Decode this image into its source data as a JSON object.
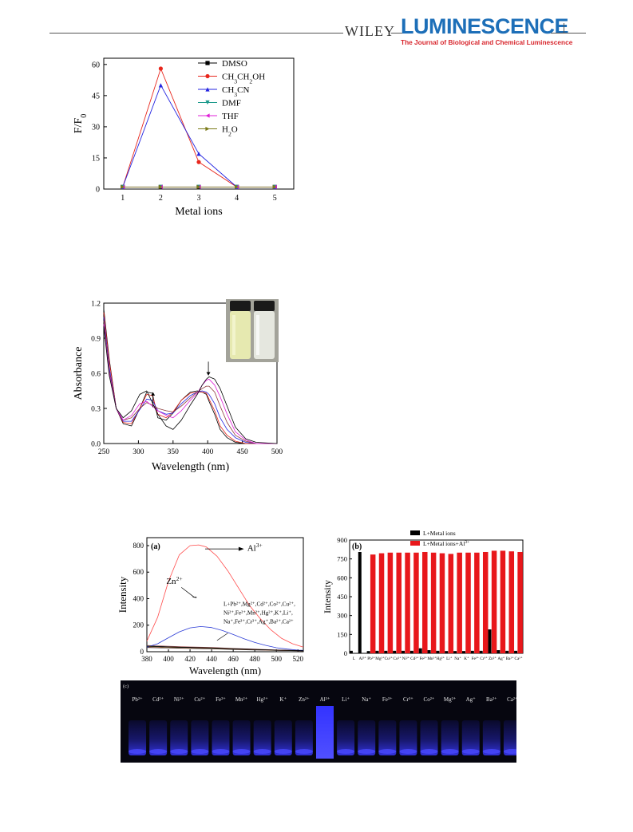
{
  "header": {
    "publisher": "WILEY",
    "journal": "LUMINESCENCE",
    "journal_subtitle": "The Journal of Biological and Chemical Luminescence"
  },
  "chart_data": [
    {
      "type": "line",
      "xlabel": "Metal ions",
      "ylabel": "F/F0",
      "xlim": [
        0.5,
        5.5
      ],
      "ylim": [
        0,
        63
      ],
      "xticks": [
        1,
        2,
        3,
        4,
        5
      ],
      "yticks": [
        0,
        15,
        30,
        45,
        60
      ],
      "legend_position": "top-right",
      "series": [
        {
          "name": "DMSO",
          "color": "#000000",
          "marker": "square",
          "x": [
            1,
            2,
            3,
            4,
            5
          ],
          "y": [
            1,
            1,
            1,
            1,
            1
          ]
        },
        {
          "name": "CH3CH2OH",
          "color": "#e8271d",
          "marker": "circle",
          "x": [
            1,
            2,
            3,
            4,
            5
          ],
          "y": [
            1,
            58,
            13,
            1,
            1
          ]
        },
        {
          "name": "CH3CN",
          "color": "#2424e0",
          "marker": "triangle-up",
          "x": [
            1,
            2,
            3,
            4,
            5
          ],
          "y": [
            1,
            50,
            17,
            1,
            1
          ]
        },
        {
          "name": "DMF",
          "color": "#1e9a8c",
          "marker": "triangle-down",
          "x": [
            1,
            2,
            3,
            4,
            5
          ],
          "y": [
            1,
            1,
            1,
            1,
            1
          ]
        },
        {
          "name": "THF",
          "color": "#e020d8",
          "marker": "triangle-left",
          "x": [
            1,
            2,
            3,
            4,
            5
          ],
          "y": [
            1,
            1,
            1,
            1,
            1
          ]
        },
        {
          "name": "H2O",
          "color": "#7a7a18",
          "marker": "triangle-right",
          "x": [
            1,
            2,
            3,
            4,
            5
          ],
          "y": [
            1,
            1,
            1,
            1,
            1
          ]
        }
      ]
    },
    {
      "type": "line",
      "xlabel": "Wavelength (nm)",
      "ylabel": "Absorbance",
      "xlim": [
        250,
        500
      ],
      "ylim": [
        0,
        1.2
      ],
      "xticks": [
        250,
        300,
        350,
        400,
        450,
        500
      ],
      "yticks": [
        0.0,
        0.3,
        0.6,
        0.9,
        1.2
      ],
      "ytick_labels": [
        "0.0",
        "0.3",
        "0.6",
        "0.9",
        "1.2"
      ],
      "arrows": [
        {
          "x": 321,
          "direction": "up"
        },
        {
          "x": 401,
          "direction": "down"
        }
      ],
      "inset_photo": "two vials, yellow and colorless",
      "series": [
        {
          "color": "#000000",
          "x": [
            250,
            258,
            268,
            278,
            290,
            302,
            312,
            320,
            328,
            340,
            350,
            362,
            375,
            385,
            392,
            398,
            402,
            410,
            418,
            428,
            440,
            455,
            470,
            500
          ],
          "y": [
            1.15,
            0.72,
            0.3,
            0.17,
            0.15,
            0.3,
            0.44,
            0.43,
            0.22,
            0.2,
            0.26,
            0.37,
            0.44,
            0.45,
            0.44,
            0.42,
            0.36,
            0.25,
            0.12,
            0.05,
            0.01,
            0.0,
            0.0,
            0.0
          ]
        },
        {
          "color": "#e8271d",
          "x": [
            250,
            258,
            268,
            278,
            290,
            302,
            312,
            320,
            328,
            340,
            350,
            362,
            375,
            385,
            392,
            398,
            402,
            410,
            418,
            428,
            440,
            455,
            470,
            500
          ],
          "y": [
            1.12,
            0.7,
            0.3,
            0.18,
            0.17,
            0.3,
            0.42,
            0.41,
            0.25,
            0.22,
            0.27,
            0.37,
            0.43,
            0.44,
            0.44,
            0.43,
            0.38,
            0.28,
            0.15,
            0.07,
            0.02,
            0.0,
            0.0,
            0.0
          ]
        },
        {
          "color": "#2424e0",
          "x": [
            250,
            258,
            268,
            278,
            290,
            302,
            312,
            320,
            328,
            340,
            350,
            362,
            375,
            385,
            392,
            398,
            402,
            410,
            418,
            428,
            440,
            455,
            470,
            500
          ],
          "y": [
            1.08,
            0.65,
            0.3,
            0.19,
            0.19,
            0.29,
            0.38,
            0.37,
            0.28,
            0.25,
            0.26,
            0.34,
            0.41,
            0.44,
            0.45,
            0.44,
            0.42,
            0.34,
            0.22,
            0.12,
            0.05,
            0.01,
            0.0,
            0.0
          ]
        },
        {
          "color": "#8b3a3a",
          "x": [
            250,
            258,
            268,
            278,
            290,
            302,
            312,
            320,
            328,
            340,
            350,
            362,
            375,
            385,
            392,
            398,
            402,
            410,
            418,
            428,
            440,
            455,
            470,
            500
          ],
          "y": [
            1.05,
            0.62,
            0.3,
            0.2,
            0.22,
            0.3,
            0.35,
            0.33,
            0.3,
            0.28,
            0.27,
            0.32,
            0.39,
            0.44,
            0.47,
            0.49,
            0.49,
            0.44,
            0.32,
            0.18,
            0.07,
            0.02,
            0.0,
            0.0
          ]
        },
        {
          "color": "#e020d8",
          "x": [
            250,
            258,
            268,
            278,
            290,
            302,
            312,
            320,
            328,
            340,
            350,
            362,
            375,
            385,
            392,
            398,
            402,
            410,
            418,
            428,
            440,
            455,
            470,
            500
          ],
          "y": [
            1.02,
            0.6,
            0.3,
            0.2,
            0.24,
            0.34,
            0.36,
            0.32,
            0.28,
            0.24,
            0.22,
            0.28,
            0.37,
            0.43,
            0.5,
            0.54,
            0.55,
            0.5,
            0.4,
            0.25,
            0.1,
            0.03,
            0.0,
            0.0
          ]
        },
        {
          "color": "#000000",
          "x": [
            250,
            258,
            268,
            278,
            290,
            302,
            312,
            320,
            328,
            340,
            350,
            362,
            375,
            385,
            392,
            398,
            402,
            410,
            418,
            428,
            440,
            455,
            470,
            500
          ],
          "y": [
            1.0,
            0.58,
            0.3,
            0.22,
            0.28,
            0.42,
            0.45,
            0.35,
            0.25,
            0.15,
            0.12,
            0.2,
            0.33,
            0.42,
            0.5,
            0.55,
            0.57,
            0.55,
            0.47,
            0.32,
            0.14,
            0.04,
            0.01,
            0.0
          ]
        }
      ]
    },
    {
      "type": "line",
      "panel_label": "(a)",
      "xlabel": "Wavelength (nm)",
      "ylabel": "Intensity",
      "xlim": [
        380,
        525
      ],
      "ylim": [
        0,
        860
      ],
      "xticks": [
        380,
        400,
        420,
        440,
        460,
        480,
        500,
        520
      ],
      "yticks": [
        0,
        200,
        400,
        600,
        800
      ],
      "annotations": [
        {
          "text": "Al3+",
          "target": "red peak"
        },
        {
          "text": "Zn2+",
          "target": "blue peak"
        },
        {
          "text": "L+Pb2+,Mg2+,Cd2+,Co2+,Cu2+, Ni2+,Fe2+,Mn2+,Hg2+,K+,Li+, Na+,Fe3+,Cr3+,Ag+,Ba2+,Ca2+",
          "target": "baseline curves"
        }
      ],
      "series": [
        {
          "name": "Al3+",
          "color": "#ff4a4a",
          "x": [
            380,
            390,
            400,
            410,
            420,
            428,
            435,
            445,
            455,
            465,
            475,
            485,
            495,
            505,
            515,
            525
          ],
          "y": [
            80,
            260,
            530,
            730,
            800,
            805,
            790,
            720,
            610,
            480,
            350,
            250,
            165,
            100,
            60,
            35
          ]
        },
        {
          "name": "Zn2+",
          "color": "#2b3bd6",
          "x": [
            380,
            390,
            400,
            410,
            420,
            430,
            440,
            450,
            460,
            470,
            480,
            490,
            500,
            510,
            520,
            525
          ],
          "y": [
            35,
            60,
            105,
            150,
            180,
            190,
            182,
            160,
            130,
            98,
            70,
            48,
            30,
            20,
            12,
            10
          ]
        },
        {
          "name": "others",
          "color": "#000000",
          "x": [
            380,
            400,
            420,
            440,
            460,
            480,
            500,
            525
          ],
          "y": [
            42,
            36,
            32,
            28,
            22,
            17,
            12,
            8
          ]
        }
      ]
    },
    {
      "type": "bar",
      "panel_label": "(b)",
      "ylabel": "Intensity",
      "ylim": [
        0,
        900
      ],
      "yticks": [
        0,
        150,
        300,
        450,
        600,
        750,
        900
      ],
      "legend_position": "top",
      "categories": [
        "L",
        "Al3+",
        "Pb2+",
        "Mg2+",
        "Cu2+",
        "Co2+",
        "Ni2+",
        "Cd2+",
        "Fe2+",
        "Mn2+",
        "Hg2+",
        "Li+",
        "Na+",
        "K+",
        "Fe3+",
        "Cr3+",
        "Zn2+",
        "Ag+",
        "Ba2+",
        "Ca2+"
      ],
      "tick_labels": [
        "L",
        "Al³⁺",
        "Pb²⁺",
        "Mg²⁺",
        "Cu²⁺",
        "Co²⁺",
        "Ni²⁺",
        "Cd²⁺",
        "Fe²⁺",
        "Mn²⁺",
        "Hg²⁺",
        "Li⁺",
        "Na⁺",
        "K⁺",
        "Fe³⁺",
        "Cr³⁺",
        "Zn²⁺",
        "Ag⁺",
        "Ba²⁺",
        "Ca²⁺"
      ],
      "series": [
        {
          "name": "L+Metal ions",
          "color": "#000000",
          "values": [
            20,
            805,
            18,
            20,
            20,
            20,
            20,
            20,
            40,
            25,
            20,
            18,
            18,
            18,
            20,
            20,
            190,
            25,
            20,
            20
          ]
        },
        {
          "name": "L+Metal ions+Al3+",
          "color": "#e8171b",
          "values": [
            null,
            null,
            785,
            795,
            800,
            800,
            800,
            800,
            805,
            800,
            795,
            790,
            800,
            800,
            800,
            805,
            815,
            815,
            810,
            805
          ]
        }
      ]
    }
  ],
  "photo_c": {
    "panel_label": "(c)",
    "labels": [
      "Pb²⁺",
      "Cd²⁺",
      "Ni²⁺",
      "Cu²⁺",
      "Fe²⁺",
      "Mn²⁺",
      "Hg²⁺",
      "K⁺",
      "Zn²⁺",
      "Al³⁺",
      "Li⁺",
      "Na⁺",
      "Fe³⁺",
      "Cr³⁺",
      "Co²⁺",
      "Mg²⁺",
      "Ag⁺",
      "Ba²⁺",
      "Ca²⁺"
    ],
    "highlight": "Al³⁺"
  }
}
